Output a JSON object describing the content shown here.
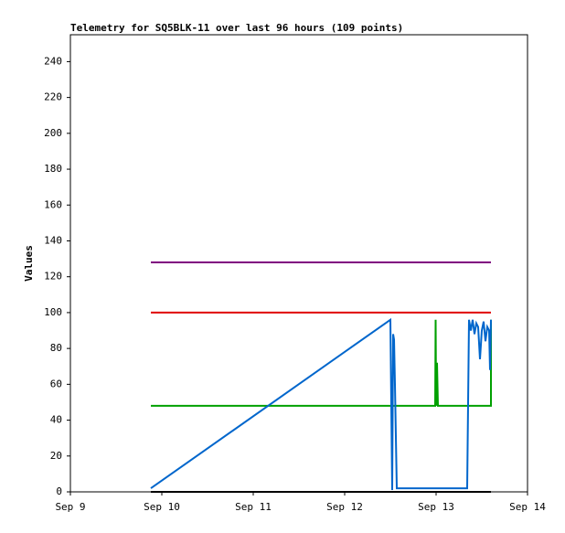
{
  "chart_data": {
    "type": "line",
    "title": "Telemetry for SQ5BLK-11 over last 96 hours (109 points)",
    "y_label": "Values",
    "xlim": [
      9,
      14
    ],
    "xticks": [
      {
        "value": 9,
        "label": "Sep 9"
      },
      {
        "value": 10,
        "label": "Sep 10"
      },
      {
        "value": 11,
        "label": "Sep 11"
      },
      {
        "value": 12,
        "label": "Sep 12"
      },
      {
        "value": 13,
        "label": "Sep 13"
      },
      {
        "value": 14,
        "label": "Sep 14"
      }
    ],
    "ylim": [
      0,
      255
    ],
    "yticks": [
      0,
      20,
      40,
      60,
      80,
      100,
      120,
      140,
      160,
      180,
      200,
      220,
      240
    ],
    "series": [
      {
        "color": "#800080",
        "x": [
          9.88,
          13.6
        ],
        "values": [
          128,
          128
        ]
      },
      {
        "color": "#e00000",
        "x": [
          9.88,
          13.6
        ],
        "values": [
          100,
          100
        ]
      },
      {
        "color": "#00a000",
        "x": [
          9.88,
          12.99,
          12.995,
          13.0,
          13.01,
          13.02,
          13.6,
          13.6
        ],
        "values": [
          48,
          48,
          96,
          48,
          72,
          48,
          48,
          96
        ]
      },
      {
        "color": "#0066cc",
        "x": [
          9.88,
          12.5,
          12.52,
          12.53,
          12.54,
          12.55,
          12.57,
          13.34,
          13.36,
          13.38,
          13.4,
          13.42,
          13.44,
          13.46,
          13.48,
          13.5,
          13.52,
          13.54,
          13.56,
          13.58,
          13.59,
          13.6
        ],
        "values": [
          2,
          96,
          1,
          88,
          85,
          60,
          2,
          2,
          96,
          90,
          96,
          88,
          94,
          92,
          74,
          90,
          95,
          84,
          92,
          90,
          68,
          96
        ]
      },
      {
        "color": "#000000",
        "x": [
          9.88,
          13.6
        ],
        "values": [
          0,
          0
        ]
      }
    ]
  }
}
